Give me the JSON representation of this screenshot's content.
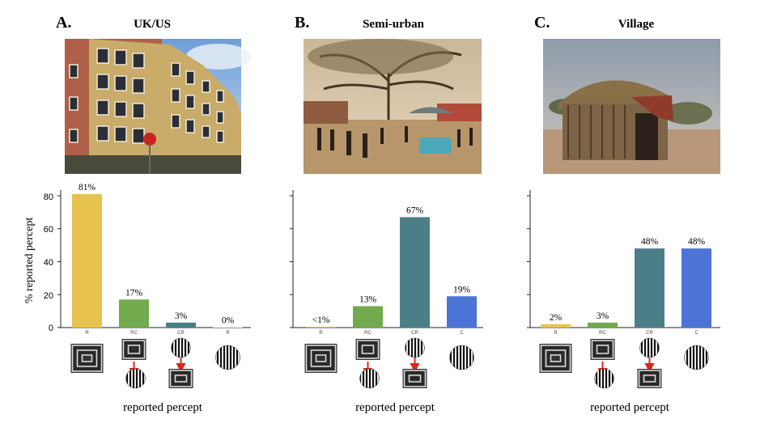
{
  "figure": {
    "ylabel": "% reported percept",
    "xlabel": "reported percept"
  },
  "chart_data": [
    {
      "type": "bar",
      "panel": "A.",
      "title": "UK/US",
      "scene": "apartment-building-photo",
      "categories": [
        "R",
        "RC",
        "CR",
        "R"
      ],
      "values": [
        81,
        17,
        3,
        0
      ],
      "value_labels": [
        "81%",
        "17%",
        "3%",
        "0%"
      ],
      "colors": [
        "#e8c24e",
        "#72aa4e",
        "#4a7f88",
        "#ffffff"
      ],
      "ylim": [
        0,
        80
      ],
      "yticks": [
        0,
        20,
        40,
        60,
        80
      ],
      "xlabel": "reported percept",
      "ylabel": "% reported percept",
      "grid": false
    },
    {
      "type": "bar",
      "panel": "B.",
      "title": "Semi-urban",
      "scene": "street-market-photo",
      "categories": [
        "R",
        "RC",
        "CR",
        "C"
      ],
      "values": [
        0.5,
        13,
        67,
        19
      ],
      "value_labels": [
        "<1%",
        "13%",
        "67%",
        "19%"
      ],
      "colors": [
        "#e8c24e",
        "#72aa4e",
        "#4a7f88",
        "#4b74d6"
      ],
      "ylim": [
        0,
        80
      ],
      "xlabel": "reported percept",
      "grid": false
    },
    {
      "type": "bar",
      "panel": "C.",
      "title": "Village",
      "scene": "thatched-hut-photo",
      "categories": [
        "R",
        "RC",
        "CR",
        "C"
      ],
      "values": [
        2,
        3,
        48,
        48
      ],
      "value_labels": [
        "2%",
        "3%",
        "48%",
        "48%"
      ],
      "colors": [
        "#e8c24e",
        "#72aa4e",
        "#4a7f88",
        "#4b74d6"
      ],
      "ylim": [
        0,
        80
      ],
      "xlabel": "reported percept",
      "grid": false
    }
  ]
}
